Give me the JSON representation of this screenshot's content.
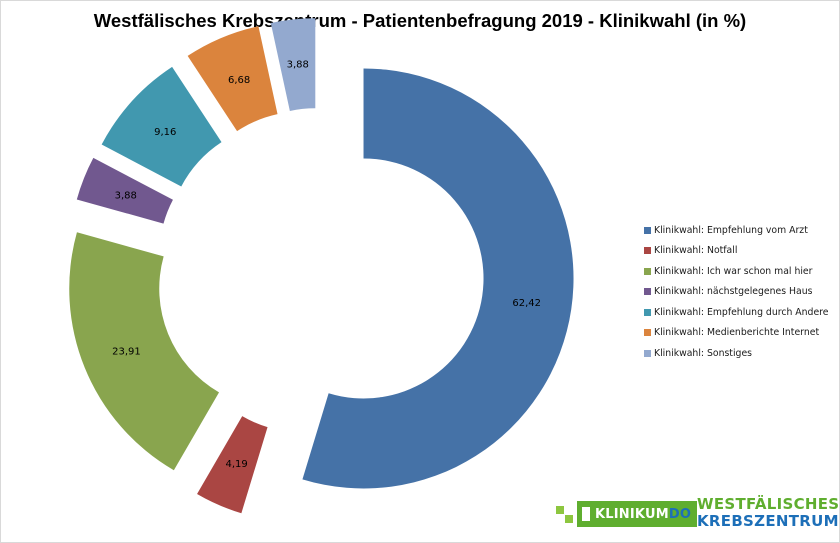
{
  "chart_data": {
    "type": "pie",
    "title": "Westfälisches Krebszentrum - Patientenbefragung 2019 - Klinikwahl (in %)",
    "categories": [
      "Klinikwahl: Empfehlung vom Arzt",
      "Klinikwahl: Notfall",
      "Klinikwahl: Ich war schon mal hier",
      "Klinikwahl: nächstgelegenes Haus",
      "Klinikwahl: Empfehlung durch Andere",
      "Klinikwahl: Medienberichte Internet",
      "Klinikwahl: Sonstiges"
    ],
    "values": [
      62.42,
      4.19,
      23.91,
      3.88,
      9.16,
      6.68,
      3.88
    ],
    "value_labels": [
      "62,42",
      "4,19",
      "23,91",
      "3,88",
      "9,16",
      "6,68",
      "3,88"
    ],
    "colors": [
      "#4572a7",
      "#aa4643",
      "#89a54e",
      "#71588f",
      "#4198af",
      "#db843d",
      "#93a9cf"
    ],
    "style": "exploded doughnut",
    "legend_position": "right"
  },
  "logo": {
    "badge_main": "KLINIKUM",
    "badge_accent": "DO",
    "name_line1": "WESTFÄLISCHES",
    "name_line2": "KREBSZENTRUM"
  }
}
